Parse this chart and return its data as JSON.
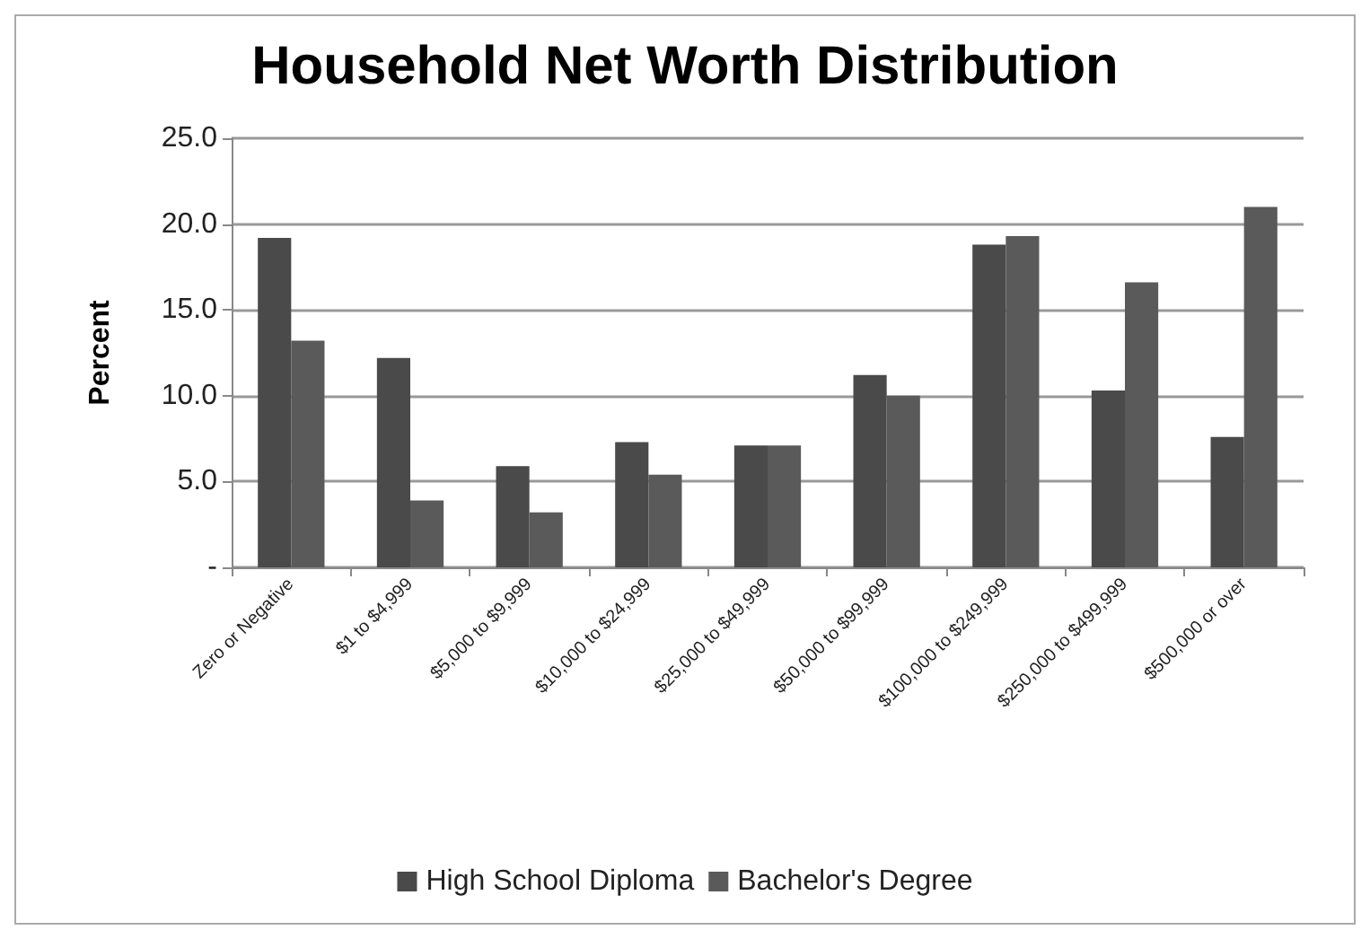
{
  "chart_data": {
    "type": "bar",
    "title": "Household Net Worth Distribution",
    "ylabel": "Percent",
    "categories": [
      "Zero or Negative",
      "$1 to $4,999",
      "$5,000 to $9,999",
      "$10,000 to $24,999",
      "$25,000 to $49,999",
      "$50,000 to $99,999",
      "$100,000 to $249,999",
      "$250,000 to $499,999",
      "$500,000 or over"
    ],
    "series": [
      {
        "name": "High School Diploma",
        "color": "#4a4a4a",
        "values": [
          19.2,
          12.2,
          5.9,
          7.3,
          7.1,
          11.2,
          18.8,
          10.3,
          7.6
        ]
      },
      {
        "name": "Bachelor's Degree",
        "color": "#5a5a5a",
        "values": [
          13.2,
          3.9,
          3.2,
          5.4,
          7.1,
          10.0,
          19.3,
          16.6,
          21.0
        ]
      }
    ],
    "ylim": [
      0,
      25
    ],
    "yticks": [
      {
        "value": 0,
        "label": "-"
      },
      {
        "value": 5,
        "label": "5.0"
      },
      {
        "value": 10,
        "label": "10.0"
      },
      {
        "value": 15,
        "label": "15.0"
      },
      {
        "value": 20,
        "label": "20.0"
      },
      {
        "value": 25,
        "label": "25.0"
      }
    ],
    "grid": "y",
    "legend": "bottom"
  }
}
